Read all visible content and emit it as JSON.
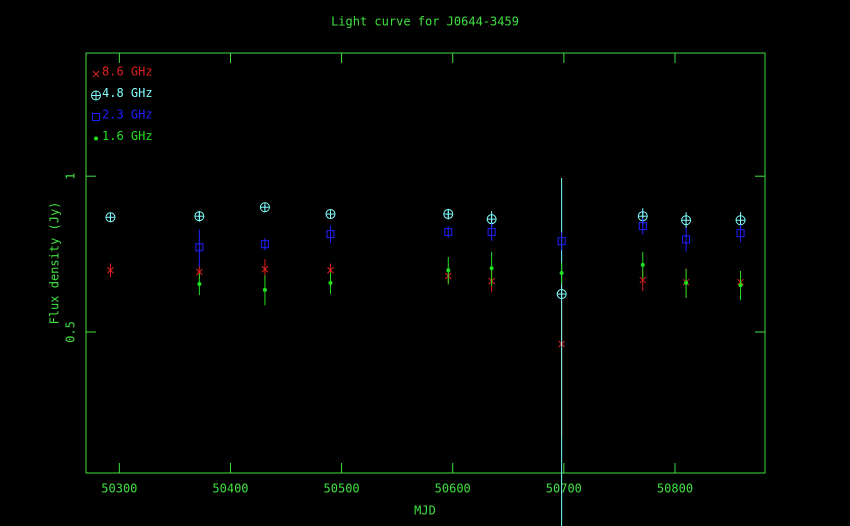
{
  "chart_data": {
    "type": "scatter",
    "title": "Light curve for J0644-3459",
    "x_label": "MJD",
    "y_label": "Flux density (Jy)",
    "x": [
      50292,
      50372,
      50431,
      50490,
      50596,
      50635,
      50698,
      50771,
      50810,
      50859
    ],
    "xlim": [
      50270,
      50881
    ],
    "xticks": [
      50300,
      50400,
      50500,
      50600,
      50700,
      50800
    ],
    "ylim": [
      0.267,
      1.73
    ],
    "yticks": [
      0.5,
      1
    ],
    "y_scale": "log",
    "legend": "upper left",
    "axis_color": "#40e040",
    "series": [
      {
        "name": "8.6 GHz",
        "color": "#e02020",
        "marker": "x",
        "values": [
          0.658,
          0.653,
          0.661,
          0.658,
          0.641,
          0.627,
          0.474,
          0.63,
          0.624,
          0.624
        ],
        "errors": [
          0.02,
          0.02,
          0.03,
          0.02,
          0.02,
          0.03,
          0.16,
          0.03,
          0.04,
          0.03
        ]
      },
      {
        "name": "4.8 GHz",
        "color": "#80ffff",
        "marker": "circle-plus",
        "values": [
          0.833,
          0.837,
          0.871,
          0.845,
          0.845,
          0.826,
          0.592,
          0.837,
          0.822,
          0.822
        ],
        "errors": [
          0.01,
          0.02,
          0.01,
          0.01,
          0.02,
          0.03,
          0.4,
          0.03,
          0.03,
          0.03
        ]
      },
      {
        "name": "2.3 GHz",
        "color": "#2020ff",
        "marker": "square",
        "values": [
          null,
          0.729,
          0.739,
          0.773,
          0.78,
          0.78,
          0.749,
          0.801,
          0.755,
          0.776
        ],
        "errors": [
          null,
          0.06,
          0.02,
          0.03,
          0.02,
          0.03,
          0.03,
          0.03,
          0.04,
          0.03
        ]
      },
      {
        "name": "1.6 GHz",
        "color": "#20e020",
        "marker": "dot",
        "values": [
          null,
          0.619,
          0.603,
          0.622,
          0.658,
          0.664,
          0.65,
          0.674,
          0.622,
          0.616
        ],
        "errors": [
          null,
          0.03,
          0.04,
          0.03,
          0.04,
          0.05,
          0.03,
          0.04,
          0.04,
          0.04
        ]
      }
    ]
  }
}
